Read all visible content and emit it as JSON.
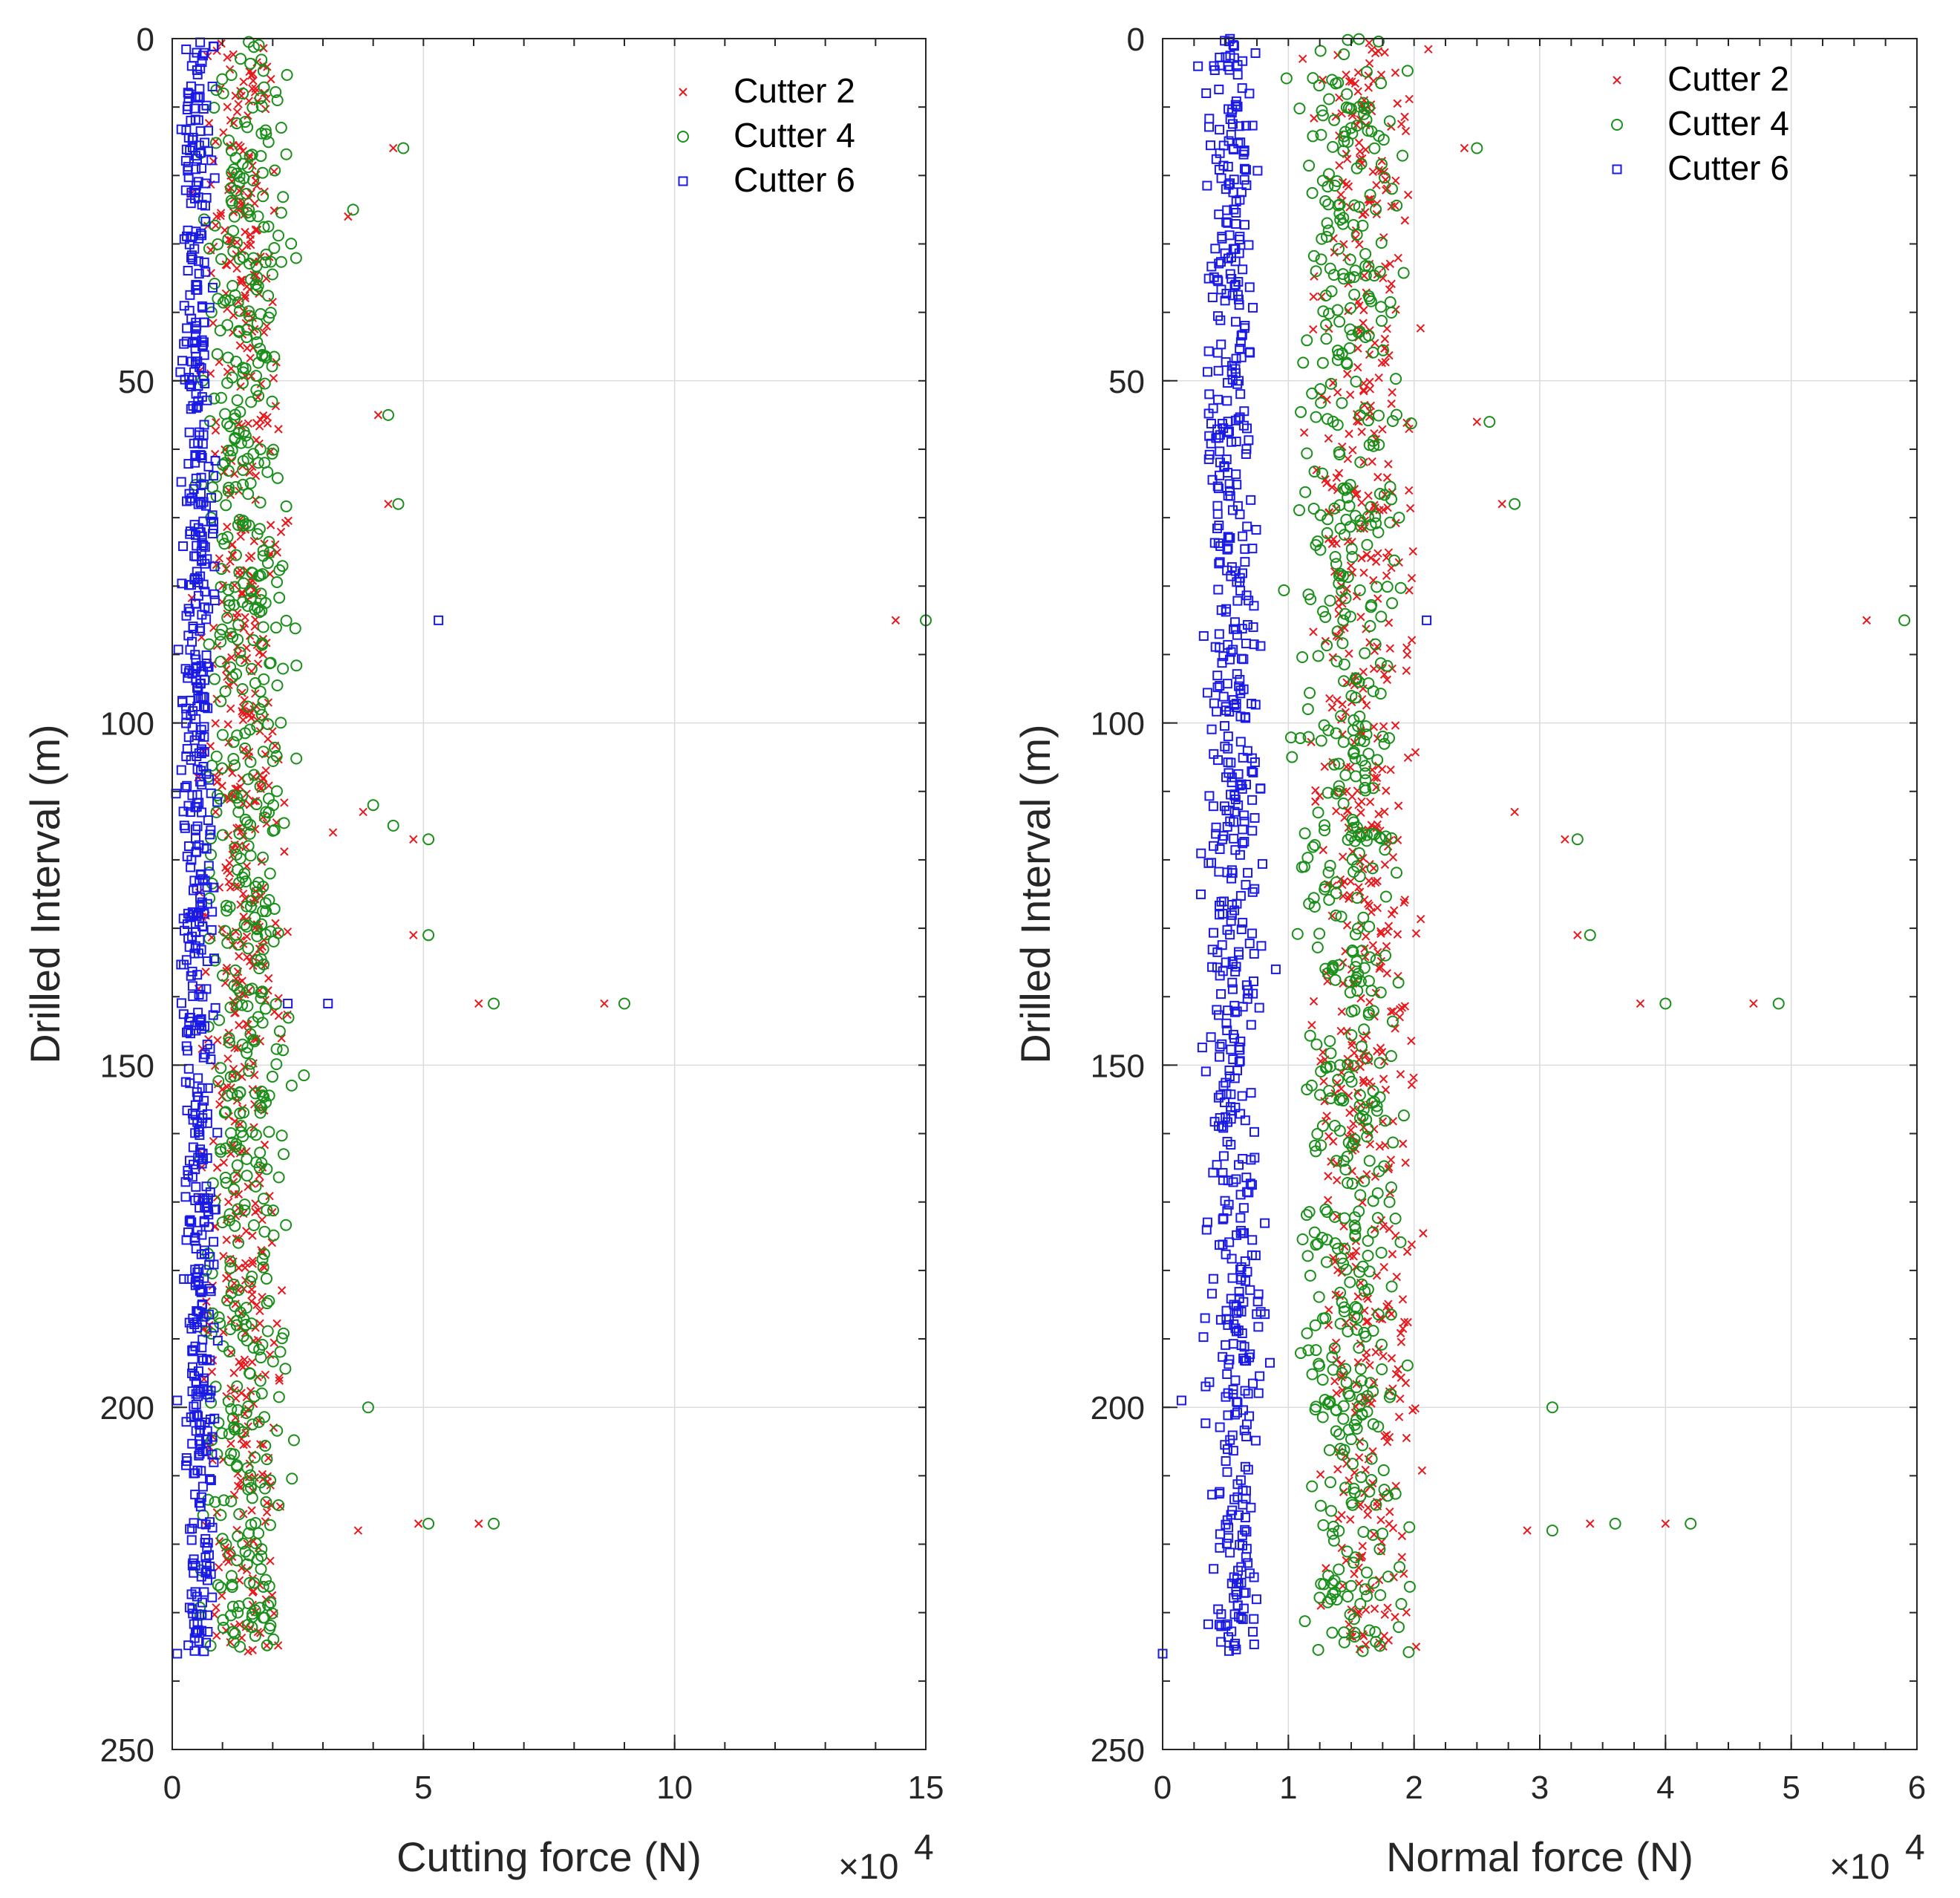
{
  "colors": {
    "cutter_2": "#e8191d",
    "cutter_4": "#1a8f1a",
    "cutter_6": "#1a1ae6",
    "grid": "#dcdcdc",
    "axis": "#262626"
  },
  "chart_data": [
    {
      "type": "scatter",
      "xlabel": "Cutting force (N)",
      "ylabel": "Drilled Interval (m)",
      "x_multiplier": "×10",
      "x_exponent": "4",
      "xlim": [
        0,
        15
      ],
      "ylim": [
        0,
        250
      ],
      "y_reversed": true,
      "x_ticks": [
        "0",
        "5",
        "10",
        "15"
      ],
      "y_ticks": [
        "0",
        "50",
        "100",
        "150",
        "200",
        "250"
      ],
      "grid": true,
      "legend_position": "top-right",
      "legend": [
        "Cutter 2",
        "Cutter 4",
        "Cutter 6"
      ],
      "series": [
        {
          "name": "Cutter 2",
          "marker": "x",
          "color_key": "cutter_2",
          "x_center": 1.4,
          "x_spread": 1.1,
          "y_range": [
            0,
            236
          ],
          "outliers": [
            [
              4.4,
              16
            ],
            [
              3.5,
              26
            ],
            [
              4.1,
              55
            ],
            [
              4.3,
              68
            ],
            [
              14.4,
              85
            ],
            [
              3.8,
              113
            ],
            [
              3.2,
              116
            ],
            [
              4.8,
              117
            ],
            [
              4.8,
              131
            ],
            [
              6.1,
              141
            ],
            [
              8.6,
              141
            ],
            [
              4.9,
              217
            ],
            [
              6.1,
              217
            ],
            [
              3.7,
              218
            ]
          ]
        },
        {
          "name": "Cutter 4",
          "marker": "o",
          "color_key": "cutter_4",
          "x_center": 1.5,
          "x_spread": 1.2,
          "y_range": [
            0,
            236
          ],
          "outliers": [
            [
              4.6,
              16
            ],
            [
              3.6,
              25
            ],
            [
              4.3,
              55
            ],
            [
              4.5,
              68
            ],
            [
              15.0,
              85
            ],
            [
              4.0,
              112
            ],
            [
              4.4,
              115
            ],
            [
              5.1,
              117
            ],
            [
              5.1,
              131
            ],
            [
              6.4,
              141
            ],
            [
              9.0,
              141
            ],
            [
              5.1,
              217
            ],
            [
              6.4,
              217
            ],
            [
              3.9,
              200
            ]
          ]
        },
        {
          "name": "Cutter 6",
          "marker": "s",
          "color_key": "cutter_6",
          "x_center": 0.5,
          "x_spread": 0.45,
          "y_range": [
            0,
            236
          ],
          "outliers": [
            [
              5.3,
              85
            ],
            [
              3.1,
              141
            ],
            [
              2.3,
              141
            ],
            [
              0.1,
              199
            ],
            [
              0.1,
              236
            ]
          ]
        }
      ]
    },
    {
      "type": "scatter",
      "xlabel": "Normal force (N)",
      "ylabel": "Drilled Interval (m)",
      "x_multiplier": "×10",
      "x_exponent": "4",
      "xlim": [
        0,
        6
      ],
      "ylim": [
        0,
        250
      ],
      "y_reversed": true,
      "x_ticks": [
        "0",
        "1",
        "2",
        "3",
        "4",
        "5",
        "6"
      ],
      "y_ticks": [
        "0",
        "50",
        "100",
        "150",
        "200",
        "250"
      ],
      "grid": true,
      "legend_position": "top-right",
      "legend": [
        "Cutter 2",
        "Cutter 4",
        "Cutter 6"
      ],
      "series": [
        {
          "name": "Cutter 2",
          "marker": "x",
          "color_key": "cutter_2",
          "x_center": 1.6,
          "x_spread": 0.6,
          "y_range": [
            0,
            236
          ],
          "outliers": [
            [
              2.4,
              16
            ],
            [
              2.5,
              56
            ],
            [
              2.7,
              68
            ],
            [
              5.6,
              85
            ],
            [
              2.8,
              113
            ],
            [
              3.2,
              117
            ],
            [
              3.3,
              131
            ],
            [
              3.8,
              141
            ],
            [
              4.7,
              141
            ],
            [
              3.4,
              217
            ],
            [
              4.0,
              217
            ],
            [
              2.9,
              218
            ]
          ]
        },
        {
          "name": "Cutter 4",
          "marker": "o",
          "color_key": "cutter_4",
          "x_center": 1.5,
          "x_spread": 0.6,
          "y_range": [
            0,
            236
          ],
          "outliers": [
            [
              2.5,
              16
            ],
            [
              2.6,
              56
            ],
            [
              2.8,
              68
            ],
            [
              5.9,
              85
            ],
            [
              3.3,
              117
            ],
            [
              3.4,
              131
            ],
            [
              4.0,
              141
            ],
            [
              4.9,
              141
            ],
            [
              3.1,
              200
            ],
            [
              3.6,
              217
            ],
            [
              4.2,
              217
            ],
            [
              3.1,
              218
            ]
          ]
        },
        {
          "name": "Cutter 6",
          "marker": "s",
          "color_key": "cutter_6",
          "x_center": 0.55,
          "x_spread": 0.3,
          "y_range": [
            0,
            236
          ],
          "outliers": [
            [
              2.1,
              85
            ],
            [
              0.9,
              136
            ],
            [
              0.15,
              199
            ],
            [
              0.0,
              236
            ]
          ]
        }
      ]
    }
  ]
}
